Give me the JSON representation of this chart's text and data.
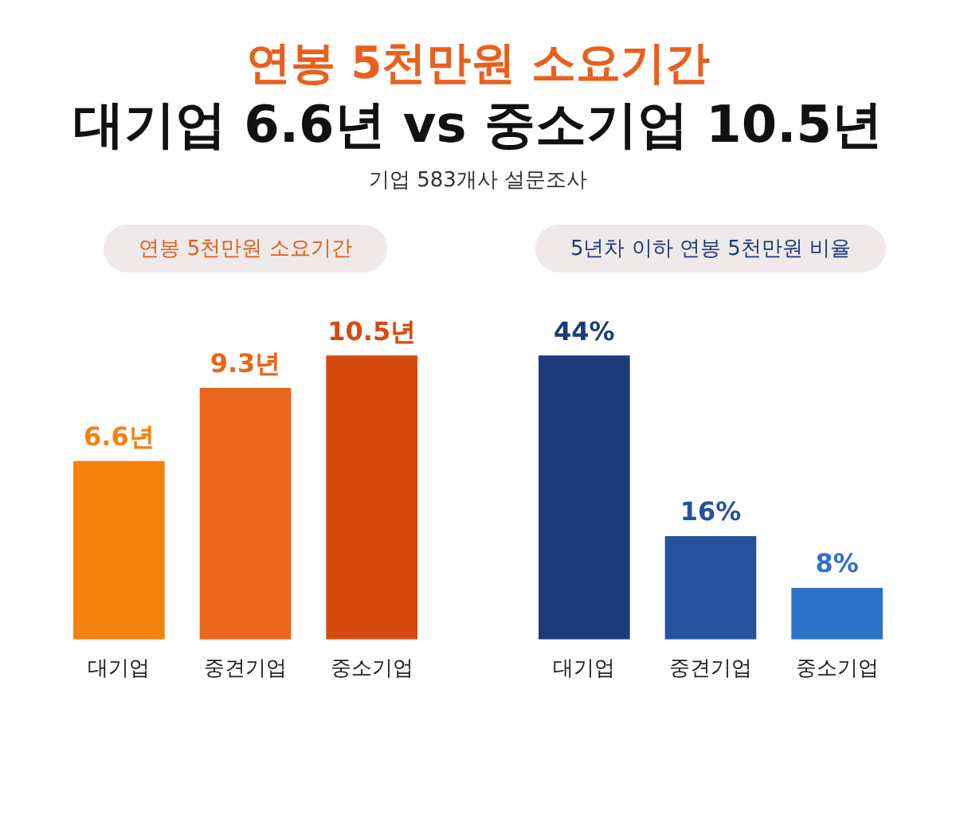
{
  "chart_data": [
    {
      "type": "bar",
      "title": "연봉 5천만원 소요기간",
      "annotations": [
        "연봉 5천만원 소요기간",
        "대기업 6.6년 vs 중소기업 10.5년",
        "기업 583개사 설문조사"
      ],
      "categories": [
        "대기업",
        "중견기업",
        "중소기업"
      ],
      "values": [
        6.6,
        9.3,
        10.5
      ],
      "colors": [
        "#f5820f",
        "#ea6519",
        "#d64a10"
      ],
      "value_labels": [
        "6.6년",
        "9.3년",
        "10.5년"
      ]
    },
    {
      "type": "bar",
      "title": "5년차 이하 연봉 5천만원 비율",
      "categories": [
        "대기업",
        "중견기업",
        "중소기업"
      ],
      "values": [
        44,
        16,
        8
      ],
      "colors": [
        "#1d3b78",
        "#24539e",
        "#2c72c8"
      ],
      "value_labels": [
        "44%",
        "16%",
        "8%"
      ]
    }
  ]
}
